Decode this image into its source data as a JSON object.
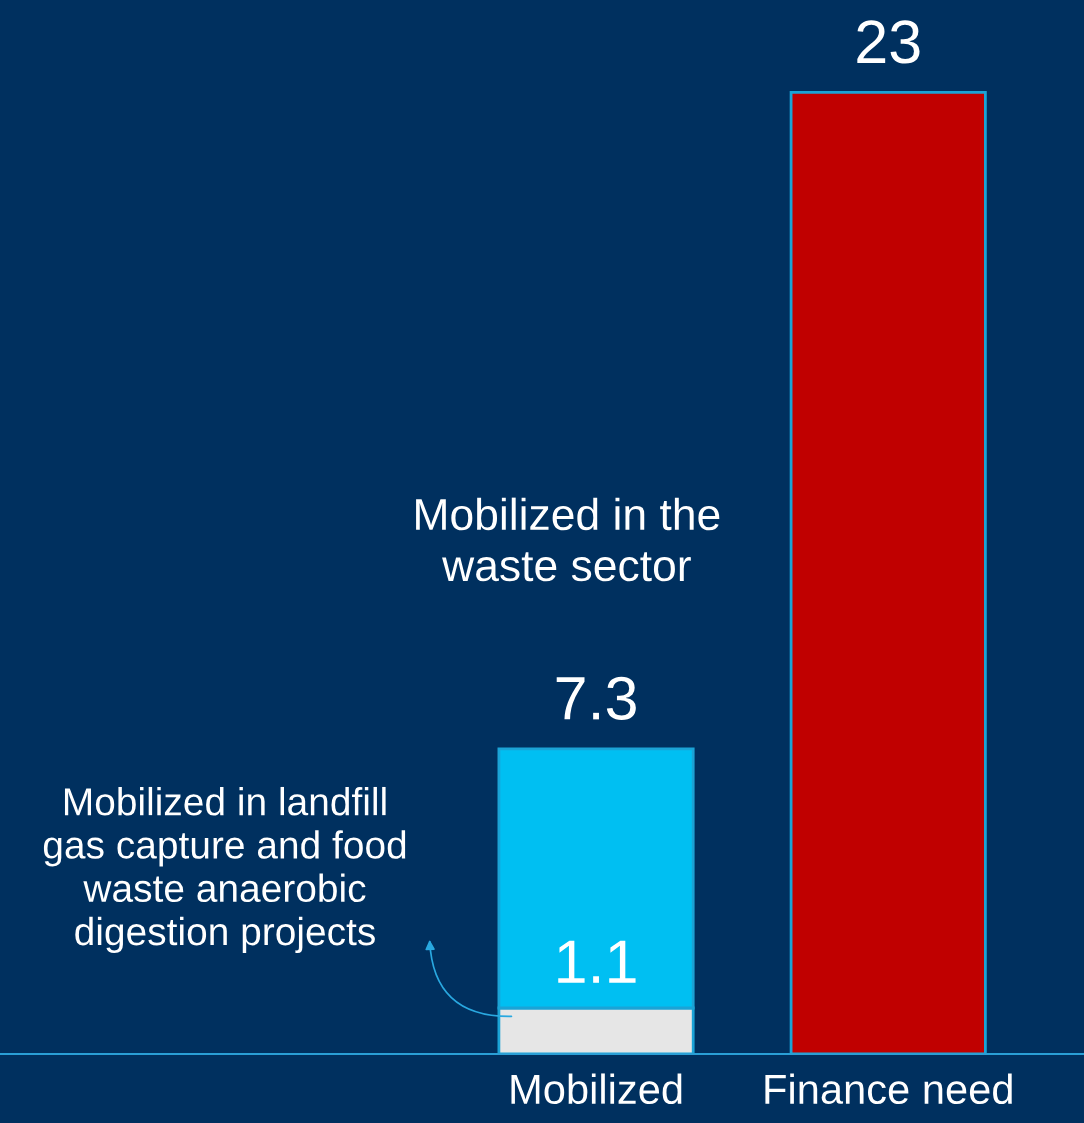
{
  "chart_data": {
    "type": "bar",
    "stacked": true,
    "categories": [
      "Mobilized",
      "Finance need"
    ],
    "series": [
      {
        "color": "#e6e6e6",
        "values": [
          1.1,
          null
        ],
        "value_labels": [
          "1.1",
          null
        ]
      },
      {
        "colors": [
          "#00bff2",
          "#c00000"
        ],
        "values": [
          6.2,
          23
        ]
      }
    ],
    "totals": [
      "7.3",
      "23"
    ],
    "annotations": [
      "Mobilized in the\nwaste sector",
      "Mobilized in landfill\ngas capture and food\nwaste anaerobic\ndigestion projects"
    ],
    "grid": false
  }
}
